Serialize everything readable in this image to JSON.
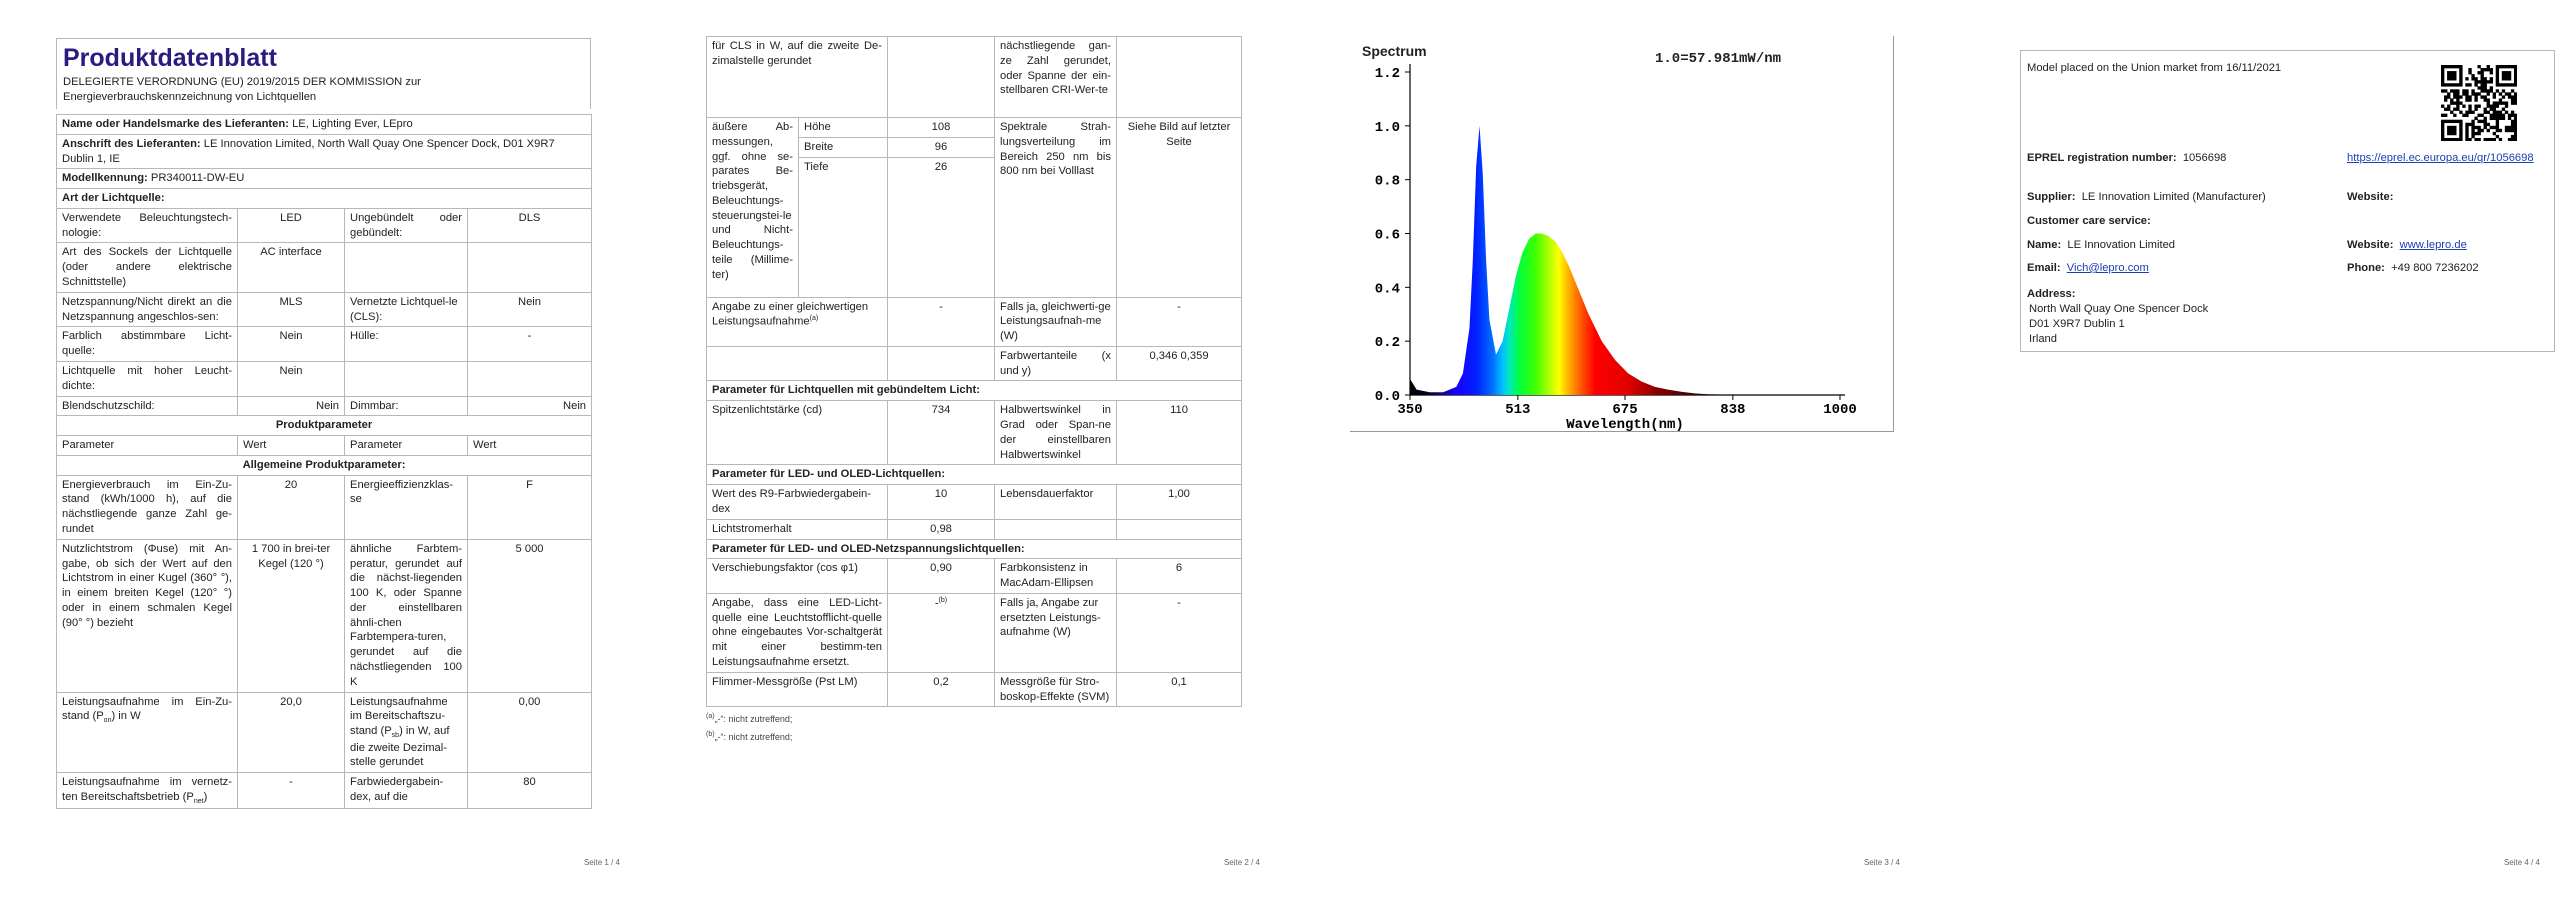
{
  "page1": {
    "title": "Produktdatenblatt",
    "regulation": "DELEGIERTE VERORDNUNG (EU) 2019/2015 DER KOMMISSION zur Energieverbrauchskennzeichnung von Lichtquellen",
    "supplier_label": "Name oder Handelsmarke des Lieferanten:",
    "supplier_value": "LE, Lighting Ever, LEpro",
    "address_label": "Anschrift des Lieferanten:",
    "address_value": "LE Innovation Limited, North Wall Quay One Spencer Dock, D01 X9R7 Dublin 1, IE",
    "model_label": "Modellkennung:",
    "model_value": "PR340011-DW-EU",
    "type_header": "Art der Lichtquelle:",
    "r1": [
      "Verwendete Beleuchtungstech-nologie:",
      "LED",
      "Ungebündelt oder gebündelt:",
      "DLS"
    ],
    "r2": [
      "Art des Sockels der Lichtquelle (oder andere elektrische Schnittstelle)",
      "AC interface",
      "",
      ""
    ],
    "r3": [
      "Netzspannung/Nicht direkt an die Netzspannung angeschlos-sen:",
      "MLS",
      "Vernetzte Lichtquel-le (CLS):",
      "Nein"
    ],
    "r4": [
      "Farblich abstimmbare Licht-quelle:",
      "Nein",
      "Hülle:",
      "-"
    ],
    "r5": [
      "Lichtquelle mit hoher Leucht-dichte:",
      "Nein",
      "",
      ""
    ],
    "r6": [
      "Blendschutzschild:",
      "Nein",
      "Dimmbar:",
      "Nein"
    ],
    "params_header": "Produktparameter",
    "col_headers": [
      "Parameter",
      "Wert",
      "Parameter",
      "Wert"
    ],
    "general_header": "Allgemeine Produktparameter:",
    "g1": [
      "Energieverbrauch im Ein-Zu-stand (kWh/1000 h), auf die nächstliegende ganze Zahl ge-rundet",
      "20",
      "Energieeffizienzklas-se",
      "F"
    ],
    "g2": [
      "Nutzlichtstrom (Φuse) mit An-gabe, ob sich der Wert auf den Lichtstrom in einer Kugel (360° °), in einem breiten Kegel (120° °) oder in einem schmalen Kegel (90° °) bezieht",
      "1 700 in brei-ter Kegel (120 °)",
      "ähnliche Farbtem-peratur, gerundet auf die nächst-liegenden 100 K, oder Spanne der einstellbaren ähnli-chen Farbtempera-turen, gerundet auf die nächstliegenden 100 K",
      "5 000"
    ],
    "g3a": "Leistungsaufnahme im Ein-Zu-stand (P",
    "g3sub": "on",
    "g3b": ") in W",
    "g3": [
      "20,0",
      "0,00"
    ],
    "g3c_a": "Leistungsaufnahme im Bereitschaftszu-stand (P",
    "g3c_sub": "sb",
    "g3c_b": ") in W, auf die zweite Dezimal-stelle gerundet",
    "g4a": "Leistungsaufnahme im vernetz-ten Bereitschaftsbetrieb (P",
    "g4sub": "net",
    "g4b": ")",
    "g4": [
      "-",
      "Farbwiedergabein-dex, auf die",
      "80"
    ],
    "page_number": "Seite 1 / 4"
  },
  "page2": {
    "c1": [
      "für CLS in W, auf die zweite De-zimalstelle gerundet",
      "",
      "nächstliegende gan-ze Zahl gerundet, oder Spanne der ein-stellbaren CRI-Wer-te",
      ""
    ],
    "dims_label": "äußere Ab-messungen, ggf. ohne se-parates Be-triebsgerät, Beleuchtungs-steuerungstei-le und Nicht-Beleuchtungs-teile (Millime-ter)",
    "dims": [
      [
        "Höhe",
        "108"
      ],
      [
        "Breite",
        "96"
      ],
      [
        "Tiefe",
        "26"
      ]
    ],
    "spectral_label": "Spektrale Strah-lungsverteilung im Bereich 250 nm bis 800 nm bei Volllast",
    "spectral_value": "Siehe Bild auf letzter Seite",
    "equiv_label_a": "Angabe zu einer gleichwertigen Leistungsaufnahme",
    "equiv_sup": "(a)",
    "equiv_value": "-",
    "equiv_right_label": "Falls ja, gleichwerti-ge Leistungsaufnah-me (W)",
    "equiv_right_value": "-",
    "chroma_label": "Farbwertanteile (x und y)",
    "chroma_value": "0,346 0,359",
    "directional_header": "Parameter für Lichtquellen mit gebündeltem Licht:",
    "d1": [
      "Spitzenlichtstärke (cd)",
      "734",
      "Halbwertswinkel in Grad oder Span-ne der einstellbaren Halbwertswinkel",
      "110"
    ],
    "led_header": "Parameter für LED- und OLED-Lichtquellen:",
    "l1": [
      "Wert des R9-Farbwiedergabein-dex",
      "10",
      "Lebensdauerfaktor",
      "1,00"
    ],
    "l2": [
      "Lichtstromerhalt",
      "0,98",
      "",
      ""
    ],
    "mains_header": "Parameter für LED- und OLED-Netzspannungslichtquellen:",
    "m1": [
      "Verschiebungsfaktor (cos φ1)",
      "0,90",
      "Farbkonsistenz in MacAdam-Ellipsen",
      "6"
    ],
    "m2_label": "Angabe, dass eine LED-Licht-quelle eine Leuchtstofflicht-quelle ohne eingebautes Vor-schaltgerät mit einer bestimm-ten Leistungsaufnahme ersetzt.",
    "m2_value": "-",
    "m2_sup": "(b)",
    "m2_right_label": "Falls ja, Angabe zur ersetzten Leistungs-aufnahme (W)",
    "m2_right_value": "-",
    "m3": [
      "Flimmer-Messgröße (Pst LM)",
      "0,2",
      "Messgröße für Stro-boskop-Effekte (SVM)",
      "0,1"
    ],
    "foot_a_sup": "(a)",
    "foot_a": "„-“: nicht zutreffend;",
    "foot_b_sup": "(b)",
    "foot_b": "„-“: nicht zutreffend;",
    "page_number": "Seite 2 / 4"
  },
  "page3": {
    "page_number": "Seite 3 / 4"
  },
  "chart_data": {
    "type": "line",
    "title": "Spectrum",
    "annotation": "1.0=57.981mW/nm",
    "xlabel": "Wavelength(nm)",
    "ylabel": "",
    "xlim": [
      350,
      1000
    ],
    "ylim": [
      0,
      1.2
    ],
    "x_ticks": [
      "350",
      "513",
      "675",
      "838",
      "1000"
    ],
    "y_ticks": [
      "0.0",
      "0.2",
      "0.4",
      "0.6",
      "0.8",
      "1.0",
      "1.2"
    ],
    "grid": false,
    "series": [
      {
        "x": [
          350,
          360,
          380,
          400,
          420,
          430,
          440,
          445,
          450,
          455,
          460,
          465,
          470,
          480,
          490,
          500,
          510,
          520,
          530,
          540,
          550,
          560,
          570,
          580,
          590,
          600,
          610,
          620,
          640,
          660,
          680,
          700,
          720,
          740,
          760,
          780,
          800,
          820,
          850,
          900,
          950,
          1000
        ],
        "values": [
          0.06,
          0.02,
          0.01,
          0.01,
          0.03,
          0.08,
          0.25,
          0.5,
          0.85,
          1.0,
          0.82,
          0.5,
          0.28,
          0.15,
          0.2,
          0.32,
          0.44,
          0.53,
          0.58,
          0.6,
          0.6,
          0.59,
          0.57,
          0.53,
          0.48,
          0.42,
          0.36,
          0.3,
          0.2,
          0.13,
          0.08,
          0.05,
          0.03,
          0.02,
          0.012,
          0.006,
          0.003,
          0.002,
          0.0,
          0.0,
          0.0,
          0.0
        ]
      }
    ]
  },
  "page4": {
    "market_text": "Model placed on the Union market from 16/11/2021",
    "reg_label": "EPREL registration number:",
    "reg_value": "1056698",
    "reg_link": "https://eprel.ec.europa.eu/qr/1056698",
    "supplier_label": "Supplier:",
    "supplier_value": "LE Innovation Limited (Manufacturer)",
    "website_label": "Website:",
    "care_label": "Customer care service:",
    "name_label": "Name:",
    "name_value": "LE Innovation Limited",
    "website2_label": "Website:",
    "website2_value": "www.lepro.de",
    "email_label": "Email:",
    "email_value": "Vich@lepro.com",
    "phone_label": "Phone:",
    "phone_value": "+49 800 7236202",
    "address_label": "Address:",
    "address_lines": [
      "North Wall Quay One Spencer Dock",
      "D01 X9R7 Dublin 1",
      "Irland"
    ],
    "page_number": "Seite 4 / 4"
  }
}
